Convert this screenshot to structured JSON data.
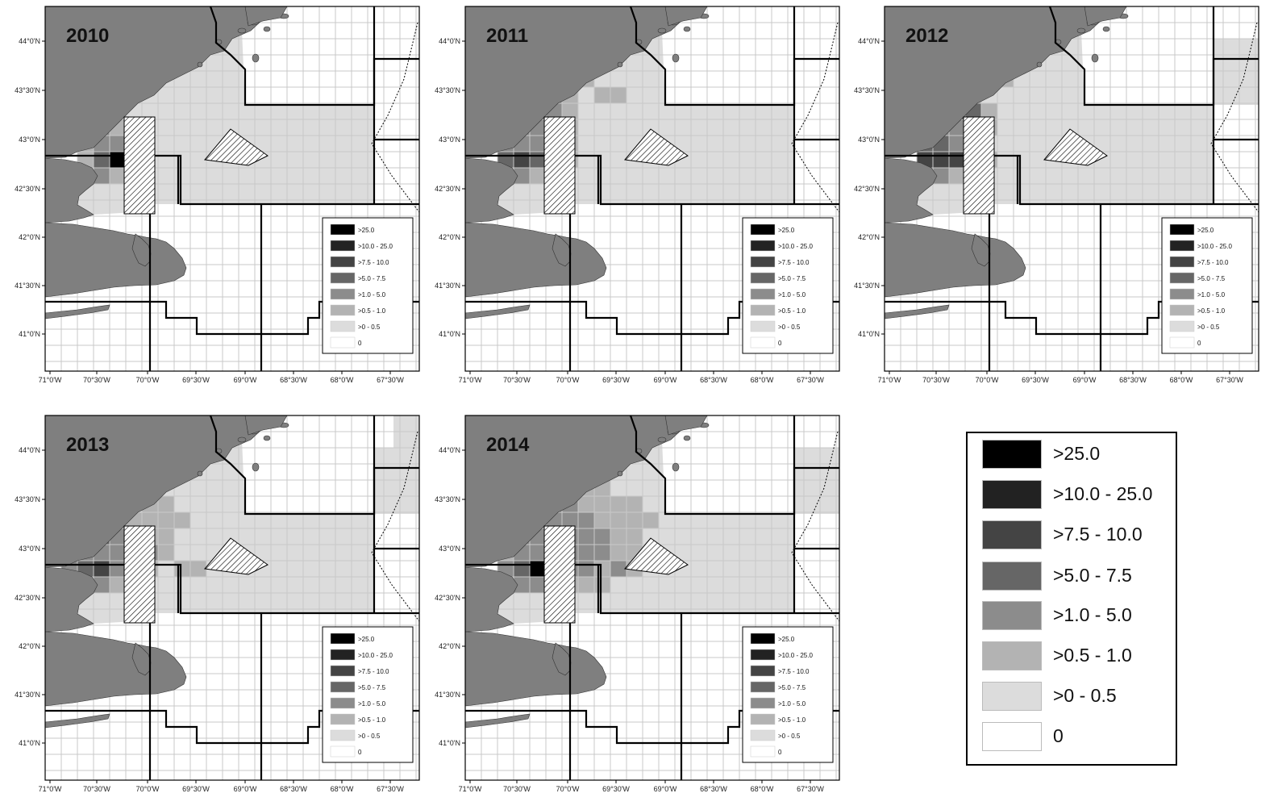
{
  "legend": {
    "items": [
      {
        "label": ">25.0",
        "color": "#000000"
      },
      {
        "label": ">10.0 - 25.0",
        "color": "#222222"
      },
      {
        "label": ">7.5 - 10.0",
        "color": "#444444"
      },
      {
        "label": ">5.0 - 7.5",
        "color": "#666666"
      },
      {
        "label": ">1.0 - 5.0",
        "color": "#8c8c8c"
      },
      {
        "label": ">0.5 - 1.0",
        "color": "#b3b3b3"
      },
      {
        "label": ">0 - 0.5",
        "color": "#dcdcdc"
      },
      {
        "label": "0",
        "color": "#ffffff"
      }
    ]
  },
  "axes": {
    "x_ticks": [
      "71°0'W",
      "70°30'W",
      "70°0'W",
      "69°30'W",
      "69°0'W",
      "68°30'W",
      "68°0'W",
      "67°30'W"
    ],
    "y_ticks": [
      "44°0'N",
      "43°30'N",
      "43°0'N",
      "42°30'N",
      "42°0'N",
      "41°30'N",
      "41°0'N"
    ]
  },
  "colors": {
    "land": "#7f7f7f",
    "sea": "#ffffff",
    "grid": "#c8c8c8",
    "boundary": "#000000"
  },
  "panels": [
    {
      "year": "2010",
      "cells": [
        [
          3,
          4,
          6
        ],
        [
          3,
          5,
          6
        ],
        [
          3,
          3,
          6
        ],
        [
          4,
          4,
          6
        ],
        [
          4,
          5,
          6
        ],
        [
          4,
          7,
          6
        ],
        [
          5,
          2,
          6
        ],
        [
          5,
          3,
          6
        ],
        [
          5,
          4,
          6
        ],
        [
          5,
          6,
          6
        ],
        [
          5,
          7,
          6
        ],
        [
          6,
          1,
          5
        ],
        [
          6,
          2,
          4
        ],
        [
          6,
          3,
          4
        ],
        [
          6,
          6,
          6
        ],
        [
          6,
          7,
          6
        ],
        [
          6,
          8,
          6
        ],
        [
          6,
          9,
          6
        ],
        [
          7,
          1,
          6
        ],
        [
          7,
          2,
          5
        ],
        [
          7,
          3,
          4
        ],
        [
          7,
          4,
          5
        ],
        [
          7,
          5,
          5
        ],
        [
          7,
          7,
          6
        ],
        [
          7,
          8,
          6
        ],
        [
          7,
          9,
          6
        ],
        [
          8,
          2,
          5
        ],
        [
          8,
          3,
          4
        ],
        [
          8,
          4,
          4
        ],
        [
          8,
          7,
          6
        ],
        [
          8,
          8,
          6
        ],
        [
          8,
          9,
          6
        ],
        [
          9,
          2,
          5
        ],
        [
          9,
          3,
          3
        ],
        [
          9,
          4,
          0
        ],
        [
          9,
          5,
          4
        ],
        [
          9,
          7,
          6
        ],
        [
          9,
          8,
          6
        ],
        [
          10,
          2,
          5
        ],
        [
          10,
          3,
          4
        ],
        [
          10,
          4,
          5
        ],
        [
          10,
          5,
          5
        ],
        [
          10,
          6,
          6
        ],
        [
          11,
          2,
          6
        ],
        [
          11,
          3,
          6
        ],
        [
          11,
          4,
          6
        ]
      ]
    },
    {
      "year": "2011",
      "cells": [
        [
          3,
          5,
          6
        ],
        [
          3,
          6,
          5
        ],
        [
          3,
          7,
          6
        ],
        [
          4,
          3,
          6
        ],
        [
          4,
          4,
          5
        ],
        [
          4,
          5,
          5
        ],
        [
          4,
          7,
          5
        ],
        [
          4,
          8,
          6
        ],
        [
          5,
          2,
          6
        ],
        [
          5,
          3,
          5
        ],
        [
          5,
          4,
          4
        ],
        [
          5,
          5,
          4
        ],
        [
          5,
          6,
          5
        ],
        [
          5,
          8,
          5
        ],
        [
          5,
          9,
          5
        ],
        [
          6,
          1,
          5
        ],
        [
          6,
          2,
          4
        ],
        [
          6,
          3,
          3
        ],
        [
          6,
          4,
          3
        ],
        [
          6,
          5,
          4
        ],
        [
          6,
          6,
          5
        ],
        [
          6,
          8,
          6
        ],
        [
          7,
          1,
          5
        ],
        [
          7,
          2,
          4
        ],
        [
          7,
          3,
          4
        ],
        [
          7,
          4,
          4
        ],
        [
          7,
          5,
          4
        ],
        [
          7,
          6,
          5
        ],
        [
          7,
          8,
          6
        ],
        [
          7,
          9,
          6
        ],
        [
          8,
          1,
          5
        ],
        [
          8,
          2,
          4
        ],
        [
          8,
          3,
          4
        ],
        [
          8,
          4,
          4
        ],
        [
          8,
          5,
          4
        ],
        [
          8,
          6,
          5
        ],
        [
          9,
          2,
          3
        ],
        [
          9,
          3,
          2
        ],
        [
          9,
          4,
          3
        ],
        [
          9,
          5,
          4
        ],
        [
          9,
          6,
          5
        ],
        [
          10,
          2,
          5
        ],
        [
          10,
          3,
          4
        ],
        [
          10,
          4,
          5
        ],
        [
          10,
          5,
          5
        ],
        [
          10,
          6,
          6
        ],
        [
          11,
          2,
          6
        ],
        [
          11,
          3,
          6
        ],
        [
          11,
          4,
          6
        ]
      ]
    },
    {
      "year": "2012",
      "cells": [
        [
          4,
          4,
          6
        ],
        [
          4,
          5,
          6
        ],
        [
          4,
          6,
          6
        ],
        [
          4,
          7,
          5
        ],
        [
          4,
          8,
          6
        ],
        [
          5,
          3,
          6
        ],
        [
          5,
          4,
          5
        ],
        [
          5,
          5,
          5
        ],
        [
          5,
          6,
          6
        ],
        [
          5,
          7,
          6
        ],
        [
          6,
          1,
          5
        ],
        [
          6,
          2,
          4
        ],
        [
          6,
          3,
          4
        ],
        [
          6,
          4,
          2
        ],
        [
          6,
          5,
          3
        ],
        [
          6,
          6,
          5
        ],
        [
          7,
          1,
          5
        ],
        [
          7,
          2,
          4
        ],
        [
          7,
          3,
          4
        ],
        [
          7,
          4,
          4
        ],
        [
          7,
          5,
          4
        ],
        [
          7,
          6,
          5
        ],
        [
          8,
          1,
          5
        ],
        [
          8,
          2,
          3
        ],
        [
          8,
          3,
          3
        ],
        [
          8,
          4,
          4
        ],
        [
          8,
          5,
          4
        ],
        [
          8,
          6,
          6
        ],
        [
          9,
          2,
          2
        ],
        [
          9,
          3,
          2
        ],
        [
          9,
          4,
          2
        ],
        [
          9,
          5,
          4
        ],
        [
          9,
          6,
          5
        ],
        [
          10,
          2,
          3
        ],
        [
          10,
          3,
          4
        ],
        [
          10,
          4,
          5
        ],
        [
          10,
          5,
          5
        ],
        [
          11,
          2,
          6
        ],
        [
          11,
          3,
          6
        ],
        [
          11,
          4,
          6
        ]
      ]
    },
    {
      "year": "2013",
      "cells": [
        [
          3,
          4,
          6
        ],
        [
          3,
          5,
          6
        ],
        [
          3,
          6,
          6
        ],
        [
          4,
          5,
          6
        ],
        [
          4,
          6,
          5
        ],
        [
          4,
          7,
          6
        ],
        [
          5,
          3,
          6
        ],
        [
          5,
          4,
          6
        ],
        [
          5,
          6,
          5
        ],
        [
          5,
          7,
          5
        ],
        [
          5,
          8,
          6
        ],
        [
          6,
          1,
          5
        ],
        [
          6,
          2,
          4
        ],
        [
          6,
          3,
          4
        ],
        [
          6,
          4,
          4
        ],
        [
          6,
          5,
          5
        ],
        [
          6,
          6,
          5
        ],
        [
          6,
          7,
          5
        ],
        [
          6,
          8,
          5
        ],
        [
          7,
          1,
          5
        ],
        [
          7,
          2,
          4
        ],
        [
          7,
          3,
          3
        ],
        [
          7,
          4,
          4
        ],
        [
          7,
          5,
          4
        ],
        [
          7,
          6,
          5
        ],
        [
          7,
          7,
          5
        ],
        [
          7,
          8,
          6
        ],
        [
          8,
          1,
          5
        ],
        [
          8,
          2,
          4
        ],
        [
          8,
          3,
          4
        ],
        [
          8,
          4,
          4
        ],
        [
          8,
          5,
          4
        ],
        [
          8,
          6,
          4
        ],
        [
          8,
          7,
          5
        ],
        [
          8,
          8,
          6
        ],
        [
          9,
          1,
          4
        ],
        [
          9,
          2,
          3
        ],
        [
          9,
          3,
          2
        ],
        [
          9,
          4,
          4
        ],
        [
          9,
          5,
          4
        ],
        [
          9,
          6,
          5
        ],
        [
          9,
          7,
          6
        ],
        [
          9,
          8,
          5
        ],
        [
          9,
          9,
          5
        ],
        [
          10,
          2,
          5
        ],
        [
          10,
          3,
          4
        ],
        [
          10,
          4,
          5
        ],
        [
          10,
          5,
          5
        ],
        [
          10,
          6,
          6
        ],
        [
          11,
          2,
          6
        ],
        [
          11,
          3,
          6
        ],
        [
          11,
          4,
          6
        ]
      ]
    },
    {
      "year": "2014",
      "cells": [
        [
          4,
          4,
          5
        ],
        [
          4,
          5,
          5
        ],
        [
          4,
          6,
          5
        ],
        [
          4,
          7,
          5
        ],
        [
          4,
          8,
          5
        ],
        [
          4,
          9,
          6
        ],
        [
          5,
          2,
          6
        ],
        [
          5,
          3,
          6
        ],
        [
          5,
          4,
          5
        ],
        [
          5,
          5,
          4
        ],
        [
          5,
          6,
          4
        ],
        [
          5,
          7,
          5
        ],
        [
          5,
          8,
          5
        ],
        [
          5,
          9,
          5
        ],
        [
          5,
          10,
          5
        ],
        [
          6,
          1,
          6
        ],
        [
          6,
          2,
          5
        ],
        [
          6,
          3,
          4
        ],
        [
          6,
          4,
          4
        ],
        [
          6,
          5,
          4
        ],
        [
          6,
          6,
          4
        ],
        [
          6,
          7,
          4
        ],
        [
          6,
          8,
          5
        ],
        [
          6,
          9,
          5
        ],
        [
          6,
          10,
          5
        ],
        [
          6,
          11,
          5
        ],
        [
          7,
          2,
          5
        ],
        [
          7,
          3,
          4
        ],
        [
          7,
          4,
          4
        ],
        [
          7,
          5,
          4
        ],
        [
          7,
          6,
          4
        ],
        [
          7,
          7,
          4
        ],
        [
          7,
          8,
          4
        ],
        [
          7,
          9,
          5
        ],
        [
          7,
          10,
          5
        ],
        [
          7,
          11,
          6
        ],
        [
          8,
          2,
          5
        ],
        [
          8,
          3,
          4
        ],
        [
          8,
          4,
          4
        ],
        [
          8,
          5,
          4
        ],
        [
          8,
          6,
          4
        ],
        [
          8,
          7,
          4
        ],
        [
          8,
          8,
          4
        ],
        [
          8,
          9,
          5
        ],
        [
          8,
          10,
          5
        ],
        [
          8,
          11,
          6
        ],
        [
          9,
          2,
          4
        ],
        [
          9,
          3,
          3
        ],
        [
          9,
          4,
          0
        ],
        [
          9,
          5,
          2
        ],
        [
          9,
          6,
          4
        ],
        [
          9,
          7,
          4
        ],
        [
          9,
          8,
          5
        ],
        [
          9,
          9,
          4
        ],
        [
          9,
          10,
          5
        ],
        [
          10,
          2,
          5
        ],
        [
          10,
          3,
          4
        ],
        [
          10,
          4,
          4
        ],
        [
          10,
          5,
          4
        ],
        [
          10,
          6,
          5
        ],
        [
          10,
          7,
          5
        ],
        [
          10,
          8,
          5
        ],
        [
          11,
          2,
          6
        ],
        [
          11,
          3,
          6
        ],
        [
          11,
          4,
          6
        ],
        [
          11,
          5,
          6
        ]
      ]
    }
  ]
}
